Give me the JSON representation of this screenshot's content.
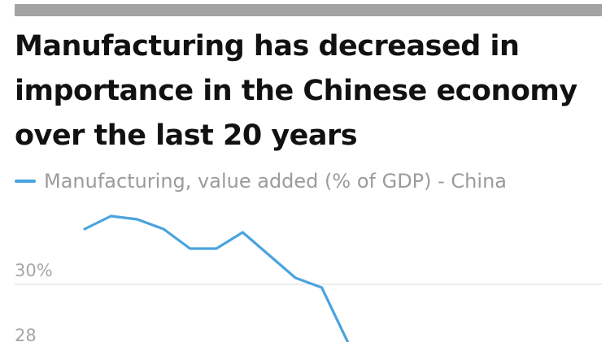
{
  "header": {
    "title": "Manufacturing has decreased in importance in the Chinese economy over the last 20 years"
  },
  "legend": {
    "label": "Manufacturing, value added (% of GDP) - China"
  },
  "colors": {
    "series": "#4aa3df",
    "top_bar": "#a3a3a3",
    "gridline": "#dcdcdc",
    "tick_text": "#a6a6a6"
  },
  "chart_data": {
    "type": "line",
    "title": "Manufacturing has decreased in importance in the Chinese economy over the last 20 years",
    "xlabel": "",
    "ylabel": "",
    "y_ticks": [
      {
        "value": 30,
        "label": "30%"
      },
      {
        "value": 28,
        "label": "28"
      }
    ],
    "grid": true,
    "legend_position": "top-left",
    "series": [
      {
        "name": "Manufacturing, value added (% of GDP) - China",
        "values": [
          31.7,
          32.1,
          32.0,
          31.7,
          31.1,
          31.1,
          31.6,
          30.9,
          30.2,
          29.9,
          28.2
        ]
      }
    ]
  }
}
